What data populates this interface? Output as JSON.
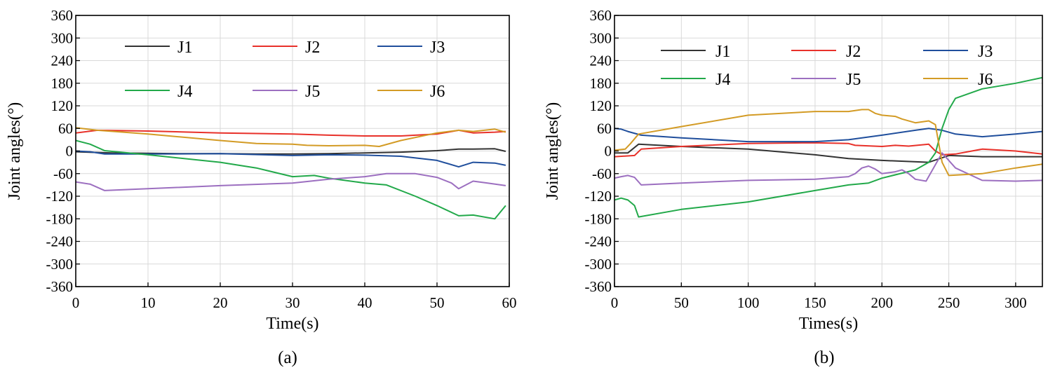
{
  "charts": [
    {
      "type": "line",
      "panel_label": "(a)",
      "xlabel": "Time(s)",
      "ylabel": "Joint angles(°)",
      "xlim": [
        0,
        60
      ],
      "ylim": [
        -360,
        360
      ],
      "xticks": [
        0,
        10,
        20,
        30,
        40,
        50,
        60
      ],
      "yticks": [
        -360,
        -300,
        -240,
        -180,
        -120,
        -60,
        0,
        60,
        120,
        180,
        240,
        300,
        360
      ],
      "grid": true,
      "legend": {
        "placement": "top",
        "columns": 3
      },
      "series": [
        {
          "name": "J1",
          "color": "#333333",
          "x": [
            0,
            5,
            10,
            15,
            20,
            25,
            30,
            35,
            40,
            45,
            50,
            53,
            55,
            58,
            59.5
          ],
          "y": [
            -2,
            -5,
            -6,
            -7,
            -7,
            -8,
            -8,
            -7,
            -5,
            -3,
            1,
            5,
            5,
            6,
            -1
          ]
        },
        {
          "name": "J2",
          "color": "#e8312a",
          "x": [
            0,
            3,
            10,
            20,
            30,
            35,
            40,
            45,
            50,
            53,
            55,
            58,
            59.5
          ],
          "y": [
            48,
            55,
            53,
            48,
            45,
            42,
            40,
            40,
            45,
            55,
            48,
            50,
            52
          ]
        },
        {
          "name": "J3",
          "color": "#1f4e9c",
          "x": [
            0,
            2,
            4,
            10,
            20,
            30,
            35,
            40,
            45,
            50,
            53,
            55,
            58,
            59.5
          ],
          "y": [
            0,
            -2,
            -8,
            -8,
            -7,
            -12,
            -10,
            -11,
            -14,
            -25,
            -42,
            -30,
            -32,
            -38
          ]
        },
        {
          "name": "J4",
          "color": "#22a94a",
          "x": [
            0,
            2,
            4,
            10,
            15,
            20,
            25,
            30,
            33,
            35,
            40,
            43,
            47,
            50,
            53,
            55,
            58,
            59.5
          ],
          "y": [
            28,
            18,
            1,
            -10,
            -20,
            -30,
            -45,
            -68,
            -65,
            -72,
            -85,
            -90,
            -120,
            -145,
            -172,
            -170,
            -180,
            -145
          ]
        },
        {
          "name": "J5",
          "color": "#9c6fc0",
          "x": [
            0,
            2,
            4,
            10,
            20,
            30,
            35,
            40,
            43,
            47,
            50,
            52,
            53,
            55,
            57,
            59.5
          ],
          "y": [
            -82,
            -88,
            -105,
            -100,
            -92,
            -85,
            -75,
            -68,
            -60,
            -60,
            -70,
            -85,
            -100,
            -80,
            -85,
            -92
          ]
        },
        {
          "name": "J6",
          "color": "#d39b25",
          "x": [
            0,
            3,
            10,
            20,
            25,
            30,
            32,
            35,
            40,
            42,
            45,
            50,
            53,
            55,
            58,
            59.5
          ],
          "y": [
            62,
            55,
            45,
            28,
            20,
            18,
            15,
            14,
            15,
            12,
            28,
            48,
            55,
            52,
            58,
            50
          ]
        }
      ]
    },
    {
      "type": "line",
      "panel_label": "(b)",
      "xlabel": "Times(s)",
      "ylabel": "Joint angles(°)",
      "xlim": [
        0,
        320
      ],
      "ylim": [
        -360,
        360
      ],
      "xticks": [
        0,
        50,
        100,
        150,
        200,
        250,
        300
      ],
      "yticks": [
        -360,
        -300,
        -240,
        -180,
        -120,
        -60,
        0,
        60,
        120,
        180,
        240,
        300,
        360
      ],
      "grid": true,
      "legend": {
        "placement": "top",
        "columns": 3
      },
      "series": [
        {
          "name": "J1",
          "color": "#333333",
          "x": [
            0,
            10,
            18,
            50,
            100,
            150,
            175,
            200,
            235,
            245,
            250,
            275,
            300,
            320
          ],
          "y": [
            -5,
            -5,
            18,
            12,
            5,
            -10,
            -20,
            -25,
            -30,
            -18,
            -12,
            -15,
            -15,
            -15
          ]
        },
        {
          "name": "J2",
          "color": "#e8312a",
          "x": [
            0,
            15,
            20,
            50,
            100,
            150,
            175,
            180,
            200,
            210,
            220,
            235,
            240,
            245,
            255,
            275,
            300,
            320
          ],
          "y": [
            -15,
            -12,
            5,
            12,
            20,
            22,
            20,
            15,
            12,
            15,
            13,
            18,
            0,
            -10,
            -8,
            5,
            0,
            -8
          ]
        },
        {
          "name": "J3",
          "color": "#1f4e9c",
          "x": [
            0,
            5,
            10,
            20,
            50,
            100,
            150,
            175,
            200,
            225,
            235,
            245,
            255,
            275,
            300,
            320
          ],
          "y": [
            60,
            58,
            52,
            42,
            35,
            25,
            25,
            30,
            42,
            55,
            60,
            55,
            45,
            38,
            45,
            52
          ]
        },
        {
          "name": "J4",
          "color": "#22a94a",
          "x": [
            0,
            5,
            10,
            15,
            18,
            50,
            100,
            150,
            175,
            190,
            200,
            225,
            235,
            240,
            245,
            250,
            255,
            275,
            300,
            320
          ],
          "y": [
            -130,
            -125,
            -130,
            -145,
            -175,
            -155,
            -135,
            -105,
            -90,
            -85,
            -72,
            -50,
            -30,
            -5,
            60,
            110,
            140,
            165,
            180,
            195
          ]
        },
        {
          "name": "J5",
          "color": "#9c6fc0",
          "x": [
            0,
            5,
            10,
            15,
            20,
            50,
            100,
            150,
            175,
            180,
            185,
            190,
            195,
            200,
            210,
            215,
            220,
            225,
            233,
            245,
            255,
            275,
            300,
            320
          ],
          "y": [
            -72,
            -68,
            -65,
            -70,
            -90,
            -85,
            -78,
            -75,
            -68,
            -60,
            -45,
            -40,
            -48,
            -60,
            -55,
            -50,
            -60,
            -75,
            -80,
            -5,
            -45,
            -78,
            -80,
            -78
          ]
        },
        {
          "name": "J6",
          "color": "#d39b25",
          "x": [
            0,
            8,
            12,
            18,
            50,
            100,
            150,
            175,
            185,
            190,
            195,
            200,
            210,
            215,
            225,
            235,
            240,
            245,
            250,
            275,
            300,
            320
          ],
          "y": [
            2,
            5,
            20,
            45,
            65,
            95,
            105,
            105,
            110,
            110,
            100,
            95,
            92,
            85,
            75,
            80,
            70,
            -30,
            -65,
            -60,
            -45,
            -35
          ]
        }
      ]
    }
  ]
}
